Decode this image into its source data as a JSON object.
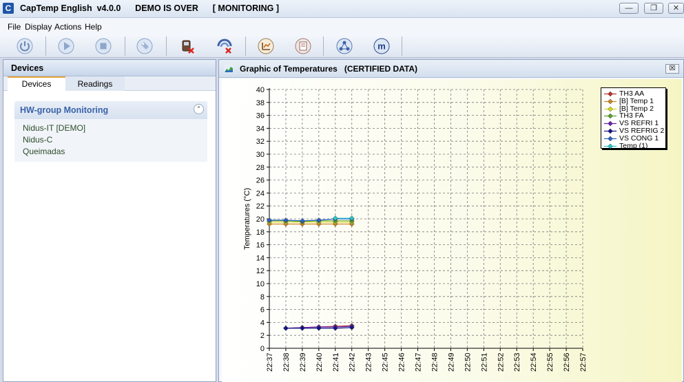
{
  "window": {
    "title": "CapTemp English  v4.0.0      DEMO IS OVER      [ MONITORING ]",
    "icon_letter": "C",
    "minimize": "—",
    "restore": "❐",
    "close": "✕"
  },
  "menu": {
    "file": "File",
    "display": "Display",
    "actions": "Actions",
    "help": "Help"
  },
  "toolbar": {
    "icons": [
      "power-icon",
      "play-icon",
      "stop-icon",
      "tag-icon",
      "remove-device-icon",
      "remove-network-icon",
      "chart-config-icon",
      "report-icon",
      "network-icon",
      "m-logo-icon"
    ]
  },
  "left_panel": {
    "header": "Devices",
    "tabs": {
      "devices": "Devices",
      "readings": "Readings"
    },
    "group_title": "HW-group Monitoring",
    "collapse_glyph": "⌃",
    "devices": [
      "Nidus-IT [DEMO]",
      "Nidus-C",
      "Queimadas"
    ]
  },
  "graph": {
    "title": "Graphic of Temperatures   (CERTIFIED DATA)",
    "close_glyph": "☒",
    "legend": [
      {
        "name": "TH3 AA",
        "color": "#c0302a"
      },
      {
        "name": "[B] Temp 1",
        "color": "#d0871d"
      },
      {
        "name": "[B] Temp 2",
        "color": "#d9d91a"
      },
      {
        "name": "TH3 FA",
        "color": "#5aa329"
      },
      {
        "name": "VS REFRI 1",
        "color": "#6a22b0"
      },
      {
        "name": "VS REFRIG 2",
        "color": "#14148a"
      },
      {
        "name": "VS CONG 1",
        "color": "#2a63c6"
      },
      {
        "name": "Temp (1)",
        "color": "#28c9c9"
      }
    ]
  },
  "chart_data": {
    "type": "line",
    "ylabel": "Temperatures (°C)",
    "ylim": [
      0,
      40
    ],
    "yticks": [
      0,
      2,
      4,
      6,
      8,
      10,
      12,
      14,
      16,
      18,
      20,
      22,
      24,
      26,
      28,
      30,
      32,
      34,
      36,
      38,
      40
    ],
    "x": [
      "22:37",
      "22:38",
      "22:39",
      "22:40",
      "22:41",
      "22:42",
      "22:43",
      "22:45",
      "22:46",
      "22:47",
      "22:48",
      "22:49",
      "22:50",
      "22:51",
      "22:52",
      "22:53",
      "22:54",
      "22:55",
      "22:56",
      "22:57"
    ],
    "grid": true,
    "legend_position": "top-right",
    "series": [
      {
        "name": "TH3 AA",
        "color": "#c0302a",
        "x": [
          1,
          2,
          3,
          4,
          5
        ],
        "values": [
          3.1,
          3.2,
          3.3,
          3.4,
          3.5
        ]
      },
      {
        "name": "[B] Temp 1",
        "color": "#d0871d",
        "x": [
          0,
          1,
          2,
          3,
          4,
          5
        ],
        "values": [
          19.2,
          19.2,
          19.2,
          19.2,
          19.2,
          19.2
        ]
      },
      {
        "name": "[B] Temp 2",
        "color": "#d9d91a",
        "x": [
          0,
          1,
          2,
          3,
          4,
          5
        ],
        "values": [
          19.5,
          19.5,
          19.5,
          19.5,
          19.5,
          19.5
        ]
      },
      {
        "name": "TH3 FA",
        "color": "#5aa329",
        "x": [
          0,
          1,
          2,
          3,
          4,
          5
        ],
        "values": [
          19.7,
          19.7,
          19.6,
          19.7,
          19.7,
          19.7
        ]
      },
      {
        "name": "VS REFRI 1",
        "color": "#6a22b0",
        "x": [
          1,
          2,
          3,
          4,
          5
        ],
        "values": [
          3.1,
          3.2,
          3.3,
          3.3,
          3.4
        ]
      },
      {
        "name": "VS REFRIG 2",
        "color": "#14148a",
        "x": [
          1,
          2,
          3,
          4,
          5
        ],
        "values": [
          3.1,
          3.1,
          3.1,
          3.1,
          3.2
        ]
      },
      {
        "name": "VS CONG 1",
        "color": "#2a63c6",
        "x": [
          0,
          1,
          2,
          3,
          4,
          5
        ],
        "values": [
          19.8,
          19.8,
          19.7,
          19.8,
          20.0,
          20.0
        ]
      },
      {
        "name": "Temp (1)",
        "color": "#28c9c9",
        "x": [
          4,
          5
        ],
        "values": [
          20.1,
          20.1
        ]
      }
    ]
  }
}
